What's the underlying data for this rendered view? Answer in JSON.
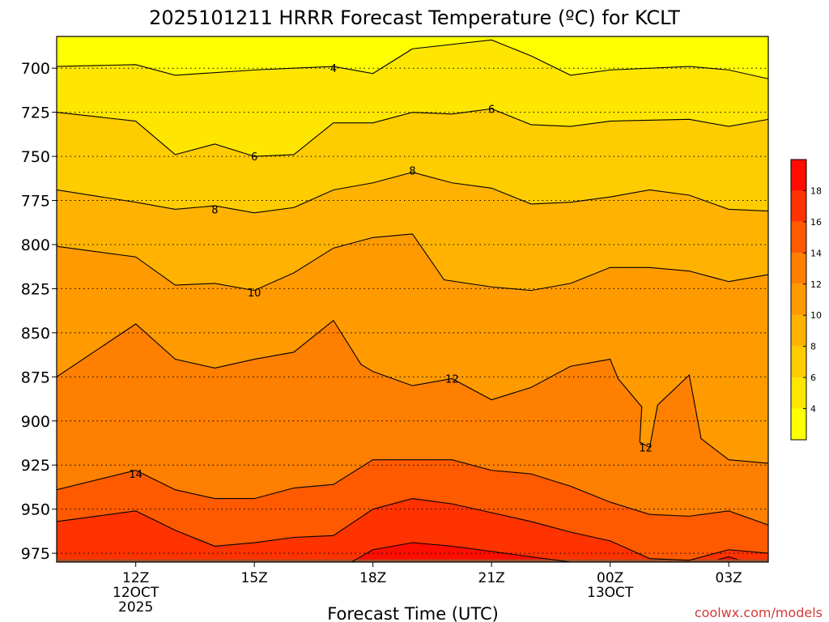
{
  "chart_data": {
    "type": "heatmap",
    "title": "2025101211 HRRR Forecast Temperature (ºC) for KCLT",
    "xlabel": "Forecast Time (UTC)",
    "ylabel": "",
    "y_axis": "pressure (hPa), inverted",
    "ylim": [
      980,
      682
    ],
    "yticks": [
      700,
      725,
      750,
      775,
      800,
      825,
      850,
      875,
      900,
      925,
      950,
      975
    ],
    "x_hours_range": [
      10,
      28
    ],
    "xticks": [
      {
        "hour": 12,
        "label": "12Z",
        "sub": [
          "12OCT",
          "2025"
        ]
      },
      {
        "hour": 15,
        "label": "15Z",
        "sub": []
      },
      {
        "hour": 18,
        "label": "18Z",
        "sub": []
      },
      {
        "hour": 21,
        "label": "21Z",
        "sub": []
      },
      {
        "hour": 24,
        "label": "00Z",
        "sub": [
          "13OCT"
        ]
      },
      {
        "hour": 27,
        "label": "03Z",
        "sub": []
      }
    ],
    "grid": "dotted horizontal lines at each pressure tick",
    "colorbar": {
      "ticks": [
        4,
        6,
        8,
        10,
        12,
        14,
        16,
        18
      ],
      "bins": [
        {
          "min": 2,
          "max": 4,
          "color": "#ffff00"
        },
        {
          "min": 4,
          "max": 6,
          "color": "#ffe600"
        },
        {
          "min": 6,
          "max": 8,
          "color": "#ffcc00"
        },
        {
          "min": 8,
          "max": 10,
          "color": "#ffb300"
        },
        {
          "min": 10,
          "max": 12,
          "color": "#ff9a00"
        },
        {
          "min": 12,
          "max": 14,
          "color": "#ff7f00"
        },
        {
          "min": 14,
          "max": 16,
          "color": "#ff5a00"
        },
        {
          "min": 16,
          "max": 18,
          "color": "#ff3300"
        },
        {
          "min": 18,
          "max": 20,
          "color": "#ff0d00"
        }
      ]
    },
    "surface_color": "#a0522d",
    "contours": [
      {
        "value": 4,
        "label_at": [
          17,
          700
        ],
        "points": [
          [
            10,
            699
          ],
          [
            12,
            698
          ],
          [
            13,
            704
          ],
          [
            15,
            701
          ],
          [
            17,
            699
          ],
          [
            18,
            703
          ],
          [
            19,
            689
          ],
          [
            21,
            684
          ],
          [
            22,
            693
          ],
          [
            23,
            704
          ],
          [
            24,
            701
          ],
          [
            26,
            699
          ],
          [
            27,
            701
          ],
          [
            28,
            706
          ]
        ]
      },
      {
        "value": 6,
        "label_at": [
          15,
          750
        ],
        "points": [
          [
            10,
            725
          ],
          [
            12,
            730
          ],
          [
            13,
            749
          ],
          [
            14,
            743
          ],
          [
            15,
            750
          ],
          [
            16,
            749
          ],
          [
            17,
            731
          ],
          [
            18,
            731
          ],
          [
            19,
            725
          ],
          [
            20,
            726
          ],
          [
            21,
            723
          ],
          [
            22,
            732
          ],
          [
            23,
            733
          ],
          [
            24,
            730
          ],
          [
            26,
            729
          ],
          [
            27,
            733
          ],
          [
            28,
            729
          ]
        ]
      },
      {
        "value": 8,
        "label_at": [
          14,
          780
        ],
        "points": [
          [
            10,
            769
          ],
          [
            12,
            776
          ],
          [
            13,
            780
          ],
          [
            14,
            778
          ],
          [
            15,
            782
          ],
          [
            16,
            779
          ],
          [
            17,
            769
          ],
          [
            18,
            765
          ],
          [
            19,
            759
          ],
          [
            20,
            765
          ],
          [
            21,
            768
          ],
          [
            22,
            777
          ],
          [
            23,
            776
          ],
          [
            24,
            773
          ],
          [
            25,
            769
          ],
          [
            26,
            772
          ],
          [
            27,
            780
          ],
          [
            28,
            781
          ]
        ]
      },
      {
        "value": 10,
        "label_at": [
          15,
          827
        ],
        "points": [
          [
            10,
            801
          ],
          [
            12,
            807
          ],
          [
            13,
            823
          ],
          [
            14,
            822
          ],
          [
            15,
            826
          ],
          [
            16,
            816
          ],
          [
            17,
            802
          ],
          [
            18,
            796
          ],
          [
            19,
            794
          ],
          [
            19.8,
            820
          ],
          [
            21,
            824
          ],
          [
            22,
            826
          ],
          [
            23,
            822
          ],
          [
            24,
            813
          ],
          [
            25,
            813
          ],
          [
            26,
            815
          ],
          [
            27,
            821
          ],
          [
            28,
            817
          ]
        ]
      },
      {
        "value": 12,
        "label_at": [
          20,
          876
        ],
        "points": [
          [
            10,
            875
          ],
          [
            12,
            845
          ],
          [
            13,
            865
          ],
          [
            14,
            870
          ],
          [
            15,
            865
          ],
          [
            16,
            861
          ],
          [
            17,
            843
          ],
          [
            17.7,
            868
          ],
          [
            18,
            872
          ],
          [
            19,
            880
          ],
          [
            20,
            876
          ],
          [
            21,
            888
          ],
          [
            22,
            881
          ],
          [
            23,
            869
          ],
          [
            24,
            865
          ],
          [
            24.2,
            876
          ],
          [
            24.8,
            892
          ],
          [
            24.75,
            912
          ],
          [
            25,
            915
          ],
          [
            25.2,
            891
          ],
          [
            26,
            874
          ],
          [
            26.3,
            910
          ],
          [
            27,
            922
          ],
          [
            28,
            924
          ]
        ]
      },
      {
        "value": 14,
        "label_at": [
          12,
          930
        ],
        "points": [
          [
            10,
            939
          ],
          [
            12,
            928
          ],
          [
            13,
            939
          ],
          [
            14,
            944
          ],
          [
            15,
            944
          ],
          [
            16,
            938
          ],
          [
            17,
            936
          ],
          [
            18,
            922
          ],
          [
            19,
            922
          ],
          [
            20,
            922
          ],
          [
            21,
            928
          ],
          [
            22,
            930
          ],
          [
            23,
            937
          ],
          [
            24,
            946
          ],
          [
            25,
            953
          ],
          [
            26,
            954
          ],
          [
            27,
            951
          ],
          [
            28,
            959
          ]
        ]
      },
      {
        "value": 16,
        "label_at": null,
        "points": [
          [
            10,
            957
          ],
          [
            12,
            951
          ],
          [
            13,
            962
          ],
          [
            14,
            971
          ],
          [
            15,
            969
          ],
          [
            16,
            966
          ],
          [
            17,
            965
          ],
          [
            18,
            950
          ],
          [
            19,
            944
          ],
          [
            20,
            947
          ],
          [
            21,
            952
          ],
          [
            22,
            957
          ],
          [
            23,
            963
          ],
          [
            24,
            968
          ],
          [
            25,
            978
          ],
          [
            26,
            979
          ],
          [
            27,
            973
          ],
          [
            28,
            975
          ]
        ]
      },
      {
        "value": 18,
        "label_at": null,
        "points": [
          [
            17.3,
            982
          ],
          [
            18,
            973
          ],
          [
            19,
            969
          ],
          [
            20,
            971
          ],
          [
            21,
            974
          ],
          [
            22,
            977
          ],
          [
            23,
            980
          ]
        ]
      }
    ],
    "small_closed_region": {
      "value": 18,
      "points": [
        [
          27,
          980
        ],
        [
          27.6,
          981
        ],
        [
          27,
          977
        ],
        [
          26.5,
          980
        ]
      ]
    }
  },
  "watermark": "coolwx.com/models"
}
